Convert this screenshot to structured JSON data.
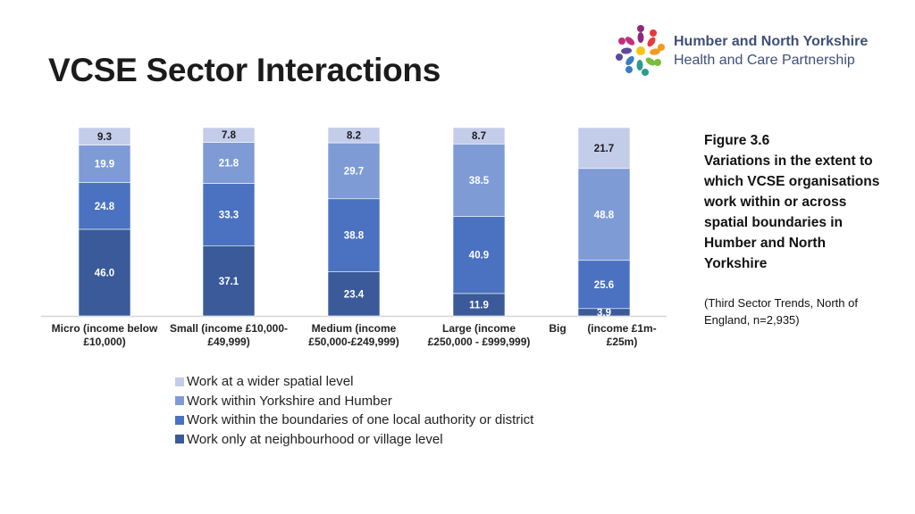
{
  "page": {
    "title": "VCSE Sector Interactions"
  },
  "logo": {
    "line1": "Humber and North Yorkshire",
    "line2": "Health and Care Partnership"
  },
  "caption": {
    "figure": "Figure 3.6",
    "text": "Variations in the extent to which VCSE organisations work within or across spatial boundaries in Humber and North Yorkshire",
    "source": "(Third Sector Trends, North of England, n=2,935)"
  },
  "chart_data": {
    "type": "bar",
    "stacked": true,
    "categories": [
      "Micro (income below £10,000)",
      "Small (income £10,000-£49,999)",
      "Medium (income £50,000-£249,999)",
      "Large (income £250,000 - £999,999)",
      "Big (income £1m-£25m)"
    ],
    "tick_labels": [
      [
        "Micro (income below",
        "£10,000)"
      ],
      [
        "Small (income £10,000-",
        "£49,999)"
      ],
      [
        "Medium (income",
        "£50,000-£249,999)"
      ],
      [
        "Large (income",
        "£250,000 - £999,999)"
      ],
      [
        "Big",
        "(income £1m-",
        "£25m)"
      ]
    ],
    "series": [
      {
        "name": "Work only at neighbourhood or village level",
        "color": "#3a5a99",
        "values": [
          46.0,
          37.1,
          23.4,
          11.9,
          3.9
        ]
      },
      {
        "name": "Work within the boundaries of one local authority or district",
        "color": "#4a72c0",
        "values": [
          24.8,
          33.3,
          38.8,
          40.9,
          25.6
        ]
      },
      {
        "name": "Work within Yorkshire and Humber",
        "color": "#7e9bd6",
        "values": [
          19.9,
          21.8,
          29.7,
          38.5,
          48.8
        ]
      },
      {
        "name": "Work at a wider spatial level",
        "color": "#c3cde9",
        "values": [
          9.3,
          7.8,
          8.2,
          8.7,
          21.7
        ]
      }
    ],
    "data_labels": [
      [
        "46.0",
        "37.1",
        "23.4",
        "11.9",
        "3.9"
      ],
      [
        "24.8",
        "33.3",
        "38.8",
        "40.9",
        "25.6"
      ],
      [
        "19.9",
        "21.8",
        "29.7",
        "38.5",
        "48.8"
      ],
      [
        "9.3",
        "7.8",
        "8.2",
        "8.7",
        "21.7"
      ]
    ],
    "legend_order": [
      3,
      2,
      1,
      0
    ],
    "ylim": [
      0,
      100
    ],
    "legend_position": "bottom",
    "grid": false,
    "title": "",
    "xlabel": "",
    "ylabel": ""
  }
}
